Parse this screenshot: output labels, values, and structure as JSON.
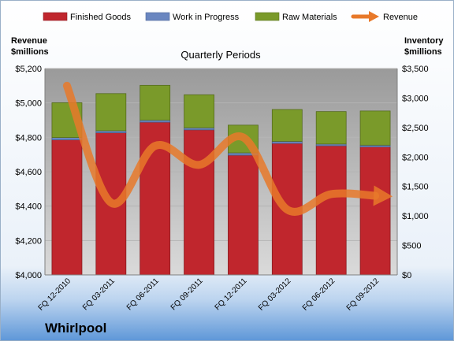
{
  "chart_data": {
    "type": "bar",
    "title": "Quarterly Periods",
    "company": "Whirlpool",
    "left_axis_label": [
      "Revenue",
      "$millions"
    ],
    "right_axis_label": [
      "Inventory",
      "$millions"
    ],
    "left_ylim": [
      4000,
      5200
    ],
    "left_ticks": [
      "$4,000",
      "$4,200",
      "$4,400",
      "$4,600",
      "$4,800",
      "$5,000",
      "$5,200"
    ],
    "right_ylim": [
      0,
      3500
    ],
    "right_ticks": [
      "$0",
      "$500",
      "$1,000",
      "$1,500",
      "$2,000",
      "$2,500",
      "$3,000",
      "$3,500"
    ],
    "categories": [
      "FQ 12-2010",
      "FQ 03-2011",
      "FQ 06-2011",
      "FQ 09-2011",
      "FQ 12-2011",
      "FQ 03-2012",
      "FQ 06-2012",
      "FQ 09-2012"
    ],
    "stacked_axis": "right",
    "series": [
      {
        "name": "Finished Goods",
        "color": "#c0262d",
        "values": [
          2290,
          2410,
          2590,
          2460,
          2030,
          2230,
          2190,
          2170
        ]
      },
      {
        "name": "Work in Progress",
        "color": "#6a86c0",
        "values": [
          40,
          35,
          35,
          35,
          40,
          35,
          30,
          30
        ]
      },
      {
        "name": "Raw Materials",
        "color": "#7a9a2a",
        "values": [
          590,
          630,
          590,
          560,
          470,
          540,
          550,
          580
        ]
      }
    ],
    "line_series": {
      "name": "Revenue",
      "color": "#e8792a",
      "axis": "left",
      "values": [
        5100,
        4420,
        4750,
        4640,
        4800,
        4380,
        4470,
        4460
      ]
    },
    "legend_position": "top",
    "grid": true
  }
}
